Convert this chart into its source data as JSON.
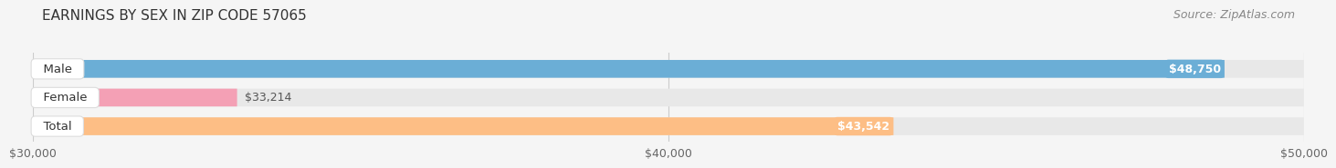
{
  "title": "EARNINGS BY SEX IN ZIP CODE 57065",
  "source": "Source: ZipAtlas.com",
  "categories": [
    "Male",
    "Female",
    "Total"
  ],
  "values": [
    48750,
    33214,
    43542
  ],
  "bar_colors": [
    "#6baed6",
    "#f4a0b5",
    "#fdbe85"
  ],
  "bar_bg_color": "#e8e8e8",
  "xmin": 30000,
  "xmax": 50000,
  "xticks": [
    30000,
    40000,
    50000
  ],
  "xtick_labels": [
    "$30,000",
    "$40,000",
    "$50,000"
  ],
  "value_labels": [
    "$48,750",
    "$33,214",
    "$43,542"
  ],
  "title_fontsize": 11,
  "source_fontsize": 9,
  "tick_fontsize": 9,
  "bar_label_fontsize": 9,
  "cat_label_fontsize": 9.5,
  "background_color": "#f5f5f5",
  "bar_height": 0.62,
  "bar_value_label_inside": [
    true,
    false,
    true
  ]
}
